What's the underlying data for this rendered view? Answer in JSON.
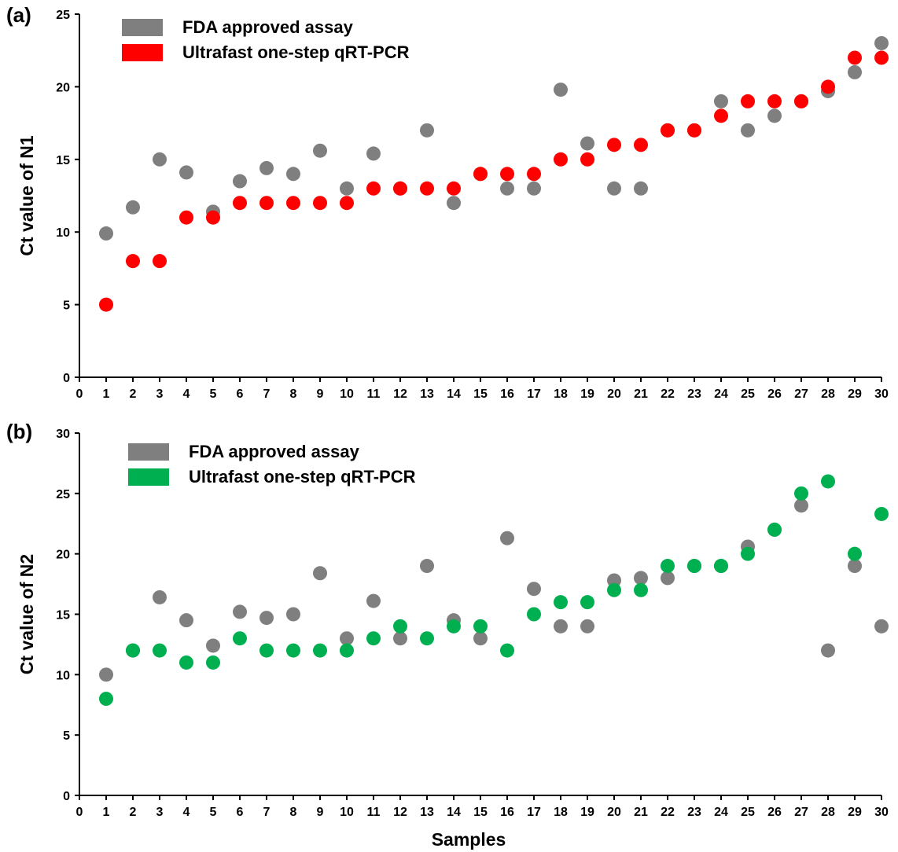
{
  "figure": {
    "xlabel": "Samples"
  },
  "chart_data": [
    {
      "type": "scatter",
      "panel_label": "(a)",
      "title": "",
      "xlabel": "",
      "ylabel": "Ct value of N1",
      "xlim": [
        0,
        30
      ],
      "ylim": [
        0,
        25
      ],
      "xticks": [
        0,
        1,
        2,
        3,
        4,
        5,
        6,
        7,
        8,
        9,
        10,
        11,
        12,
        13,
        14,
        15,
        16,
        17,
        18,
        19,
        20,
        21,
        22,
        23,
        24,
        25,
        26,
        27,
        28,
        29,
        30
      ],
      "yticks": [
        0,
        5,
        10,
        15,
        20,
        25
      ],
      "grid": false,
      "legend_position": "top-left",
      "x": [
        1,
        2,
        3,
        4,
        5,
        6,
        7,
        8,
        9,
        10,
        11,
        12,
        13,
        14,
        15,
        16,
        17,
        18,
        19,
        20,
        21,
        22,
        23,
        24,
        25,
        26,
        27,
        28,
        29,
        30
      ],
      "series": [
        {
          "name": "FDA approved assay",
          "color": "#7f7f7f",
          "values": [
            9.9,
            11.7,
            15,
            14.1,
            11.4,
            13.5,
            14.4,
            14,
            15.6,
            13,
            15.4,
            13,
            17,
            12,
            14,
            13,
            13,
            19.8,
            16.1,
            13,
            13,
            17,
            17,
            19,
            17,
            18,
            19,
            19.7,
            21,
            23
          ]
        },
        {
          "name": "Ultrafast one-step qRT-PCR",
          "color": "#ff0000",
          "values": [
            5,
            8,
            8,
            11,
            11,
            12,
            12,
            12,
            12,
            12,
            13,
            13,
            13,
            13,
            14,
            14,
            14,
            15,
            15,
            16,
            16,
            17,
            17,
            18,
            19,
            19,
            19,
            20,
            22,
            22
          ]
        }
      ]
    },
    {
      "type": "scatter",
      "panel_label": "(b)",
      "title": "",
      "xlabel": "Samples",
      "ylabel": "Ct value of N2",
      "xlim": [
        0,
        30
      ],
      "ylim": [
        0,
        30
      ],
      "xticks": [
        0,
        1,
        2,
        3,
        4,
        5,
        6,
        7,
        8,
        9,
        10,
        11,
        12,
        13,
        14,
        15,
        16,
        17,
        18,
        19,
        20,
        21,
        22,
        23,
        24,
        25,
        26,
        27,
        28,
        29,
        30
      ],
      "yticks": [
        0,
        5,
        10,
        15,
        20,
        25,
        30
      ],
      "grid": false,
      "legend_position": "top-left",
      "x": [
        1,
        2,
        3,
        4,
        5,
        6,
        7,
        8,
        9,
        10,
        11,
        12,
        13,
        14,
        15,
        16,
        17,
        18,
        19,
        20,
        21,
        22,
        23,
        24,
        25,
        26,
        27,
        28,
        29,
        30
      ],
      "series": [
        {
          "name": "FDA approved assay",
          "color": "#7f7f7f",
          "values": [
            10,
            12,
            16.4,
            14.5,
            12.4,
            15.2,
            14.7,
            15,
            18.4,
            13,
            16.1,
            13,
            19,
            14.5,
            13,
            21.3,
            17.1,
            14,
            14,
            17.8,
            18,
            18,
            19,
            19,
            20.6,
            22,
            24,
            12,
            19,
            14
          ]
        },
        {
          "name": "Ultrafast one-step qRT-PCR",
          "color": "#00b050",
          "values": [
            8,
            12,
            12,
            11,
            11,
            13,
            12,
            12,
            12,
            12,
            13,
            14,
            13,
            14,
            14,
            12,
            15,
            16,
            16,
            17,
            17,
            19,
            19,
            19,
            20,
            22,
            25,
            26,
            20,
            23.3
          ]
        }
      ]
    }
  ]
}
